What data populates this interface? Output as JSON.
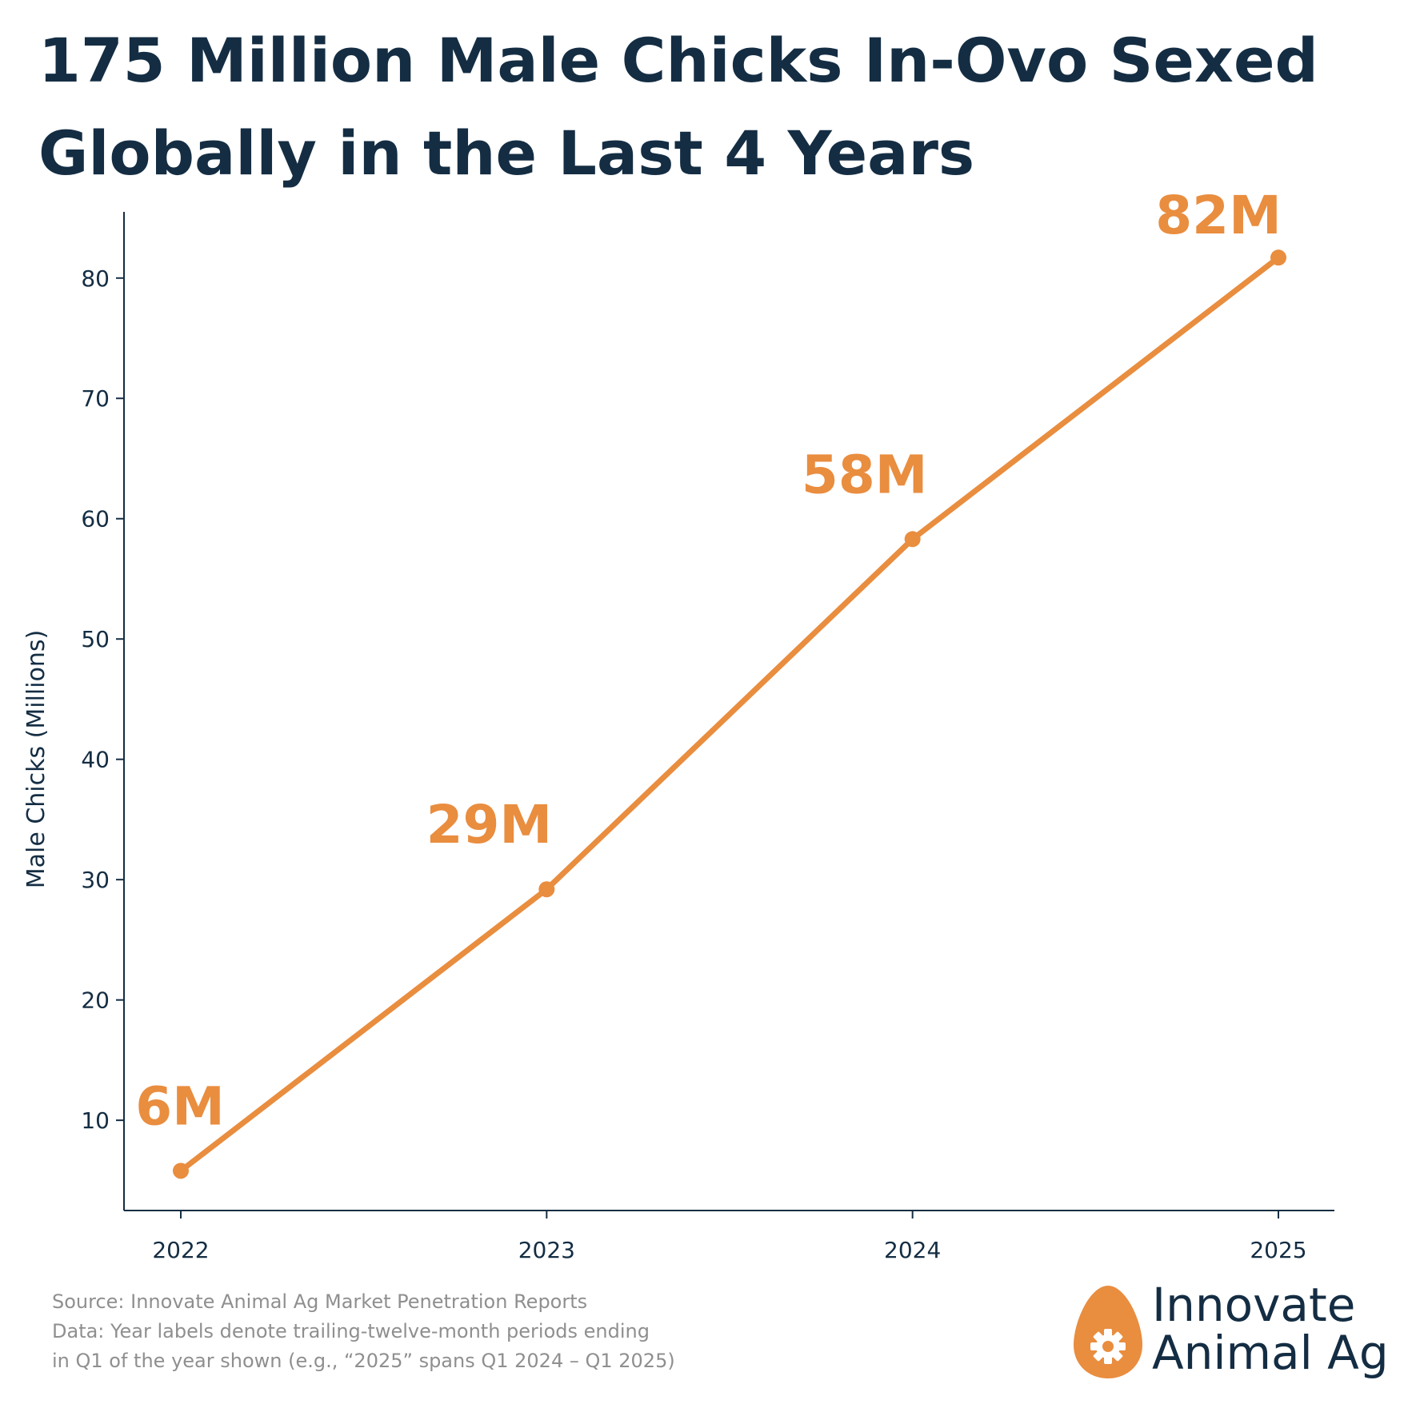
{
  "title_line1": "175 Million Male Chicks In-Ovo Sexed",
  "title_line2": "Globally in the Last 4 Years",
  "chart_data": {
    "type": "line",
    "x": [
      "2022",
      "2023",
      "2024",
      "2025"
    ],
    "series": [
      {
        "values": [
          5.8,
          29.2,
          58.3,
          81.7
        ],
        "labels": [
          "6M",
          "29M",
          "58M",
          "82M"
        ]
      }
    ],
    "ylabel": "Male Chicks (Millions)",
    "xlabel": "",
    "yticks": [
      10,
      20,
      30,
      40,
      50,
      60,
      70,
      80
    ],
    "ylim": [
      2.5,
      85.5
    ],
    "grid": false,
    "legend": "none"
  },
  "colors": {
    "line": "#e98d3f",
    "text": "#142d43",
    "muted": "#8f8f8f"
  },
  "footnote": {
    "line1": "Source: Innovate Animal Ag Market Penetration Reports",
    "line2": "Data: Year labels denote trailing-twelve-month periods ending",
    "line3": "in Q1 of the year shown (e.g., “2025” spans Q1 2024 – Q1 2025)"
  },
  "logo": {
    "line1": "Innovate",
    "line2": "Animal Ag",
    "icon": "egg-gear-icon"
  }
}
